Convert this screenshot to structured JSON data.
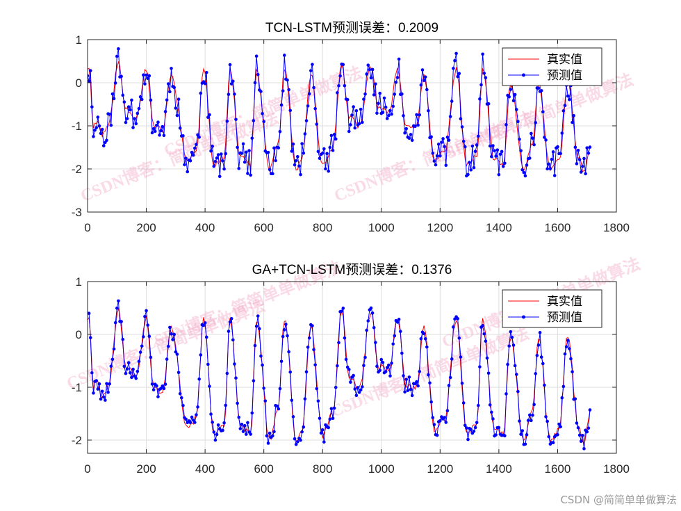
{
  "watermark": "CSDN博客：简简单单做算法",
  "credit": "CSDN @简简单单做算法",
  "colors": {
    "true_line": "#ff0000",
    "pred_line": "#0000ff",
    "grid": "#dedede",
    "axis": "#262626"
  },
  "chart_data": [
    {
      "type": "line",
      "title": "TCN-LSTM预测误差：0.2009",
      "xlabel": "",
      "ylabel": "",
      "xlim": [
        0,
        1800
      ],
      "ylim": [
        -3,
        1
      ],
      "xticks": [
        0,
        200,
        400,
        600,
        800,
        1000,
        1200,
        1400,
        1600,
        1800
      ],
      "yticks": [
        -3,
        -2,
        -1,
        0,
        1
      ],
      "grid": true,
      "legend_position": "top-right",
      "noise": 0.35,
      "seed": 11,
      "n_points": 1715,
      "sample_step": 5,
      "series": [
        {
          "name": "真实值",
          "style": "line",
          "color": "#ff0000"
        },
        {
          "name": "预测值",
          "style": "line-dot",
          "color": "#0000ff"
        }
      ],
      "peaks": [
        {
          "x": 5,
          "y": 0.35
        },
        {
          "x": 20,
          "y": -1.0
        },
        {
          "x": 35,
          "y": -0.9
        },
        {
          "x": 50,
          "y": -1.2
        },
        {
          "x": 70,
          "y": -1.0
        },
        {
          "x": 105,
          "y": 0.45
        },
        {
          "x": 130,
          "y": -0.6
        },
        {
          "x": 165,
          "y": -0.8
        },
        {
          "x": 200,
          "y": 0.3
        },
        {
          "x": 225,
          "y": -1.0
        },
        {
          "x": 255,
          "y": -1.1
        },
        {
          "x": 285,
          "y": 0.15
        },
        {
          "x": 340,
          "y": -1.8
        },
        {
          "x": 370,
          "y": -1.6
        },
        {
          "x": 395,
          "y": 0.3
        },
        {
          "x": 430,
          "y": -1.9
        },
        {
          "x": 465,
          "y": -1.7
        },
        {
          "x": 485,
          "y": 0.3
        },
        {
          "x": 520,
          "y": -1.7
        },
        {
          "x": 555,
          "y": -1.9
        },
        {
          "x": 575,
          "y": 0.25
        },
        {
          "x": 620,
          "y": -2.0
        },
        {
          "x": 650,
          "y": -1.4
        },
        {
          "x": 670,
          "y": 0.3
        },
        {
          "x": 710,
          "y": -2.0
        },
        {
          "x": 730,
          "y": -1.8
        },
        {
          "x": 760,
          "y": 0.2
        },
        {
          "x": 800,
          "y": -1.9
        },
        {
          "x": 835,
          "y": -1.5
        },
        {
          "x": 865,
          "y": 0.45
        },
        {
          "x": 890,
          "y": -0.8
        },
        {
          "x": 925,
          "y": -1.0
        },
        {
          "x": 965,
          "y": 0.4
        },
        {
          "x": 990,
          "y": -0.6
        },
        {
          "x": 1025,
          "y": -0.7
        },
        {
          "x": 1055,
          "y": 0.3
        },
        {
          "x": 1085,
          "y": -1.0
        },
        {
          "x": 1120,
          "y": -1.0
        },
        {
          "x": 1145,
          "y": 0.15
        },
        {
          "x": 1180,
          "y": -1.8
        },
        {
          "x": 1215,
          "y": -1.6
        },
        {
          "x": 1255,
          "y": 0.3
        },
        {
          "x": 1290,
          "y": -1.9
        },
        {
          "x": 1325,
          "y": -1.7
        },
        {
          "x": 1345,
          "y": 0.3
        },
        {
          "x": 1385,
          "y": -1.8
        },
        {
          "x": 1415,
          "y": -1.9
        },
        {
          "x": 1440,
          "y": -0.05
        },
        {
          "x": 1485,
          "y": -2.0
        },
        {
          "x": 1515,
          "y": -1.4
        },
        {
          "x": 1535,
          "y": -0.05
        },
        {
          "x": 1575,
          "y": -2.0
        },
        {
          "x": 1605,
          "y": -1.8
        },
        {
          "x": 1635,
          "y": 0.0
        },
        {
          "x": 1670,
          "y": -1.7
        },
        {
          "x": 1690,
          "y": -2.1
        },
        {
          "x": 1710,
          "y": -1.5
        }
      ]
    },
    {
      "type": "line",
      "title": "GA+TCN-LSTM预测误差：0.1376",
      "xlabel": "",
      "ylabel": "",
      "xlim": [
        0,
        1800
      ],
      "ylim": [
        -2.25,
        1
      ],
      "xticks": [
        0,
        200,
        400,
        600,
        800,
        1000,
        1200,
        1400,
        1600,
        1800
      ],
      "yticks": [
        -2,
        -1,
        0,
        1
      ],
      "grid": true,
      "legend_position": "top-right",
      "noise": 0.16,
      "seed": 29,
      "n_points": 1715,
      "sample_step": 5,
      "series": [
        {
          "name": "真实值",
          "style": "line",
          "color": "#ff0000"
        },
        {
          "name": "预测值",
          "style": "line-dot",
          "color": "#0000ff"
        }
      ],
      "peaks": [
        {
          "x": 5,
          "y": 0.3
        },
        {
          "x": 20,
          "y": -1.0
        },
        {
          "x": 35,
          "y": -0.9
        },
        {
          "x": 50,
          "y": -1.2
        },
        {
          "x": 70,
          "y": -1.0
        },
        {
          "x": 105,
          "y": 0.45
        },
        {
          "x": 130,
          "y": -0.6
        },
        {
          "x": 165,
          "y": -0.8
        },
        {
          "x": 200,
          "y": 0.3
        },
        {
          "x": 225,
          "y": -1.0
        },
        {
          "x": 255,
          "y": -1.1
        },
        {
          "x": 285,
          "y": 0.15
        },
        {
          "x": 340,
          "y": -1.8
        },
        {
          "x": 370,
          "y": -1.6
        },
        {
          "x": 395,
          "y": 0.3
        },
        {
          "x": 430,
          "y": -1.9
        },
        {
          "x": 465,
          "y": -1.7
        },
        {
          "x": 485,
          "y": 0.3
        },
        {
          "x": 520,
          "y": -1.7
        },
        {
          "x": 555,
          "y": -1.9
        },
        {
          "x": 575,
          "y": 0.25
        },
        {
          "x": 620,
          "y": -2.0
        },
        {
          "x": 650,
          "y": -1.4
        },
        {
          "x": 670,
          "y": 0.3
        },
        {
          "x": 710,
          "y": -2.0
        },
        {
          "x": 730,
          "y": -1.8
        },
        {
          "x": 760,
          "y": 0.2
        },
        {
          "x": 800,
          "y": -1.9
        },
        {
          "x": 835,
          "y": -1.5
        },
        {
          "x": 865,
          "y": 0.45
        },
        {
          "x": 890,
          "y": -0.8
        },
        {
          "x": 925,
          "y": -1.0
        },
        {
          "x": 965,
          "y": 0.4
        },
        {
          "x": 990,
          "y": -0.6
        },
        {
          "x": 1025,
          "y": -0.7
        },
        {
          "x": 1055,
          "y": 0.3
        },
        {
          "x": 1085,
          "y": -1.0
        },
        {
          "x": 1120,
          "y": -1.0
        },
        {
          "x": 1145,
          "y": 0.15
        },
        {
          "x": 1180,
          "y": -1.8
        },
        {
          "x": 1215,
          "y": -1.6
        },
        {
          "x": 1255,
          "y": 0.3
        },
        {
          "x": 1290,
          "y": -1.9
        },
        {
          "x": 1325,
          "y": -1.7
        },
        {
          "x": 1345,
          "y": 0.3
        },
        {
          "x": 1385,
          "y": -1.8
        },
        {
          "x": 1415,
          "y": -1.9
        },
        {
          "x": 1440,
          "y": -0.05
        },
        {
          "x": 1485,
          "y": -2.0
        },
        {
          "x": 1515,
          "y": -1.4
        },
        {
          "x": 1535,
          "y": -0.05
        },
        {
          "x": 1575,
          "y": -2.0
        },
        {
          "x": 1605,
          "y": -1.8
        },
        {
          "x": 1635,
          "y": 0.0
        },
        {
          "x": 1670,
          "y": -1.7
        },
        {
          "x": 1690,
          "y": -2.1
        },
        {
          "x": 1710,
          "y": -1.5
        }
      ]
    }
  ]
}
